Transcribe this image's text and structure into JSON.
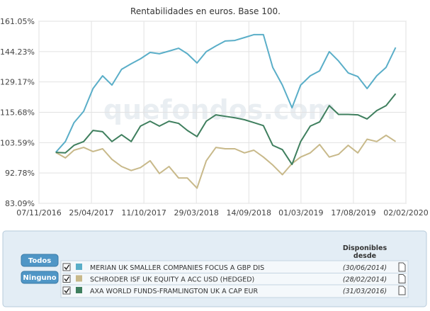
{
  "chart_data": {
    "type": "line",
    "title": "Rentabilidades en euros. Base 100.",
    "watermark": "quefondos.com",
    "x": [
      "2016-12-31",
      "2017-01-31",
      "2017-02-28",
      "2017-03-31",
      "2017-04-30",
      "2017-05-31",
      "2017-06-30",
      "2017-07-31",
      "2017-08-31",
      "2017-09-30",
      "2017-10-31",
      "2017-11-30",
      "2017-12-31",
      "2018-01-31",
      "2018-02-28",
      "2018-03-31",
      "2018-04-30",
      "2018-05-31",
      "2018-06-30",
      "2018-07-31",
      "2018-08-31",
      "2018-09-30",
      "2018-10-31",
      "2018-11-30",
      "2018-12-31",
      "2019-01-31",
      "2019-02-28",
      "2019-03-31",
      "2019-04-30",
      "2019-05-31",
      "2019-06-30",
      "2019-07-31",
      "2019-08-31",
      "2019-09-30",
      "2019-10-31",
      "2019-11-30",
      "2019-12-31"
    ],
    "series": [
      {
        "name": "MERIAN UK SMALLER COMPANIES FOCUS A GBP DIS",
        "color": "#5aaec8",
        "values": [
          100,
          104,
          111.4,
          116.1,
          126.1,
          132.1,
          127.7,
          135.2,
          138,
          140.5,
          143.8,
          143.1,
          144.5,
          146,
          143.1,
          138.4,
          144.2,
          147.2,
          149.9,
          150.2,
          151.8,
          153.4,
          153.4,
          136.2,
          127.7,
          117.6,
          127.7,
          132.1,
          134.5,
          144.2,
          139.4,
          133.5,
          131.7,
          126.1,
          132.1,
          136.2,
          146.4
        ]
      },
      {
        "name": "SCHRODER ISF UK EQUITY A ACC USD (HEDGED)",
        "color": "#c8b98a",
        "values": [
          100,
          98,
          100.8,
          101.8,
          100.3,
          101.3,
          97.5,
          95,
          93.6,
          94.6,
          97,
          92.6,
          95,
          91.1,
          91.1,
          87.8,
          97,
          101.8,
          101.3,
          101.3,
          99.8,
          100.8,
          98.3,
          95.5,
          92.2,
          96,
          98.3,
          99.8,
          102.9,
          98.3,
          99.3,
          102.6,
          99.8,
          104.9,
          104,
          106.4,
          104
        ]
      },
      {
        "name": "AXA WORLD FUNDS-FRAMLINGTON UK A CAP EUR",
        "color": "#3f7f5e",
        "values": [
          100,
          99.8,
          102.6,
          104,
          108.3,
          107.8,
          104,
          106.6,
          104,
          110,
          112,
          110,
          112,
          111.1,
          108.3,
          105.9,
          112,
          114.6,
          114,
          113.4,
          112.6,
          111.4,
          110.2,
          102.6,
          101,
          95.7,
          104,
          110,
          111.7,
          118.5,
          114.8,
          114.8,
          114.6,
          112.9,
          116.4,
          118.5,
          123.8
        ]
      }
    ],
    "xlim": [
      "2016-11-07",
      "2020-02-02"
    ],
    "xticks": [
      {
        "value": "2016-11-07",
        "label": "07/11/2016"
      },
      {
        "value": "2017-04-25",
        "label": "25/04/2017"
      },
      {
        "value": "2017-10-11",
        "label": "11/10/2017"
      },
      {
        "value": "2018-03-29",
        "label": "29/03/2018"
      },
      {
        "value": "2018-09-14",
        "label": "14/09/2018"
      },
      {
        "value": "2019-03-01",
        "label": "01/03/2019"
      },
      {
        "value": "2019-08-17",
        "label": "17/08/2019"
      },
      {
        "value": "2020-02-02",
        "label": "02/02/2020"
      }
    ],
    "ylim": [
      83.09,
      161.05
    ],
    "yticks": [
      {
        "value": 83.09,
        "label": "83.09%"
      },
      {
        "value": 92.78,
        "label": "92.78%"
      },
      {
        "value": 103.59,
        "label": "103.59%"
      },
      {
        "value": 115.68,
        "label": "115.68%"
      },
      {
        "value": 129.17,
        "label": "129.17%"
      },
      {
        "value": 144.23,
        "label": "144.23%"
      },
      {
        "value": 161.05,
        "label": "161.05%"
      }
    ],
    "log_scale": true,
    "grid": true
  },
  "legend_panel": {
    "buttons": [
      "Todos",
      "Ninguno"
    ],
    "header": [
      "Disponibles",
      "desde"
    ],
    "dates": [
      "(30/06/2014)",
      "(28/02/2014)",
      "(31/03/2016)"
    ]
  }
}
